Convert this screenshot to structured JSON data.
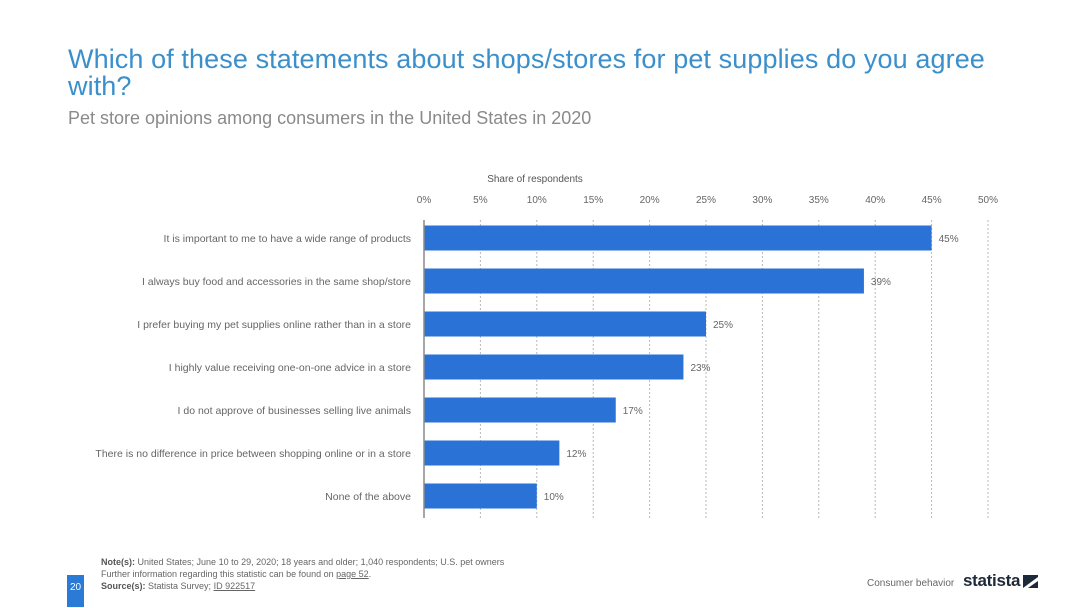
{
  "header": {
    "title": "Which of these statements about shops/stores for pet supplies do you agree with?",
    "subtitle": "Pet store opinions among consumers in the United States in 2020"
  },
  "chart_data": {
    "type": "bar",
    "orientation": "horizontal",
    "title": "Which of these statements about shops/stores for pet supplies do you agree with?",
    "subtitle": "Pet store opinions among consumers in the United States in 2020",
    "xlabel": "Share of respondents",
    "ylabel": "",
    "xlim": [
      0,
      50
    ],
    "x_ticks": [
      "0%",
      "5%",
      "10%",
      "15%",
      "20%",
      "25%",
      "30%",
      "35%",
      "40%",
      "45%",
      "50%"
    ],
    "x_tick_values": [
      0,
      5,
      10,
      15,
      20,
      25,
      30,
      35,
      40,
      45,
      50
    ],
    "grid": true,
    "categories": [
      "It is important to me to have a wide range of products",
      "I always buy food and accessories in the same shop/store",
      "I prefer buying my pet supplies online rather than in a store",
      "I highly value receiving one-on-one advice in a store",
      "I do not approve of businesses selling live animals",
      "There is no difference in price between shopping online or in a store",
      "None of the above"
    ],
    "values": [
      45,
      39,
      25,
      23,
      17,
      12,
      10
    ],
    "data_labels": [
      "45%",
      "39%",
      "25%",
      "23%",
      "17%",
      "12%",
      "10%"
    ],
    "bar_color": "#2a72d6"
  },
  "footer": {
    "notes_label": "Note(s):",
    "notes_text": "United States; June 10 to 29, 2020; 18  years and older; 1,040 respondents; U.S. pet owners",
    "further_info": "Further information regarding this statistic can be found on",
    "further_link": "page 52",
    "further_end": ".",
    "source_label": "Source(s):",
    "source_text": "Statista Survey;",
    "source_link": "ID 922517",
    "page_number": "20",
    "section": "Consumer behavior",
    "logo_text": "statista"
  },
  "colors": {
    "accent": "#3b8fcb",
    "bar": "#2a72d6",
    "page_badge": "#2a7ad6"
  }
}
